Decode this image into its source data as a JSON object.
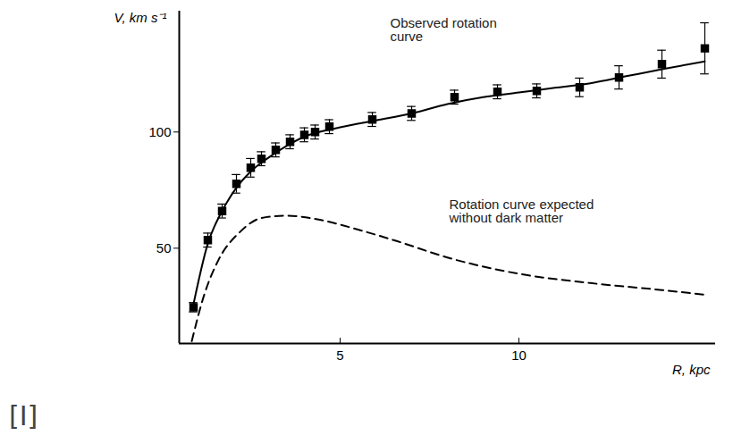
{
  "chart_data": {
    "type": "line",
    "x_label": "R, kpc",
    "y_label": "V, km s⁻¹",
    "panel_label": "[I]",
    "xlim": [
      0.5,
      15.5
    ],
    "ylim": [
      9,
      152
    ],
    "xticks": [
      5,
      10
    ],
    "yticks": [
      50,
      100
    ],
    "grid": false,
    "series": [
      {
        "type": "scatter",
        "marker": "square",
        "color": "#000000",
        "x": [
          0.9,
          1.3,
          1.7,
          2.1,
          2.5,
          2.8,
          3.2,
          3.6,
          4.0,
          4.3,
          4.7,
          5.9,
          7.0,
          8.2,
          9.4,
          10.5,
          11.7,
          12.8,
          14.0,
          15.2
        ],
        "values": [
          24.6,
          53.5,
          66,
          77.7,
          84.6,
          88.5,
          92.3,
          95.8,
          98.8,
          100,
          102.3,
          105.4,
          108,
          115,
          117.3,
          117.7,
          119.2,
          123.5,
          129.2,
          136
        ],
        "errors": [
          2,
          3,
          3,
          4,
          4,
          3,
          3,
          3,
          3,
          3,
          3,
          3,
          3,
          3,
          3,
          3,
          4,
          5,
          6,
          11
        ]
      },
      {
        "type": "line",
        "line_style": "solid",
        "color": "#000000",
        "x": [
          0.9,
          1.3,
          1.7,
          2.1,
          2.5,
          3.0,
          3.5,
          4.0,
          5.0,
          6.0,
          7.0,
          8.0,
          9.0,
          10.0,
          11.0,
          12.0,
          13.0,
          14.0,
          15.2
        ],
        "values": [
          26,
          52,
          66,
          76,
          83,
          89,
          94,
          98,
          102,
          105,
          108,
          112,
          115,
          117,
          119,
          121,
          124,
          127,
          130.4
        ]
      },
      {
        "type": "line",
        "line_style": "dashed",
        "color": "#000000",
        "x": [
          0.85,
          1.2,
          1.6,
          2.2,
          2.8,
          3.5,
          4.5,
          5.5,
          6.6,
          8.0,
          10.0,
          12.0,
          14.0,
          15.2
        ],
        "values": [
          10,
          30,
          45,
          57,
          63,
          64,
          62,
          58,
          53,
          46,
          39,
          35,
          32,
          30
        ]
      }
    ],
    "annotations": [
      {
        "text": "Observed rotation\ncurve",
        "x": 6.4,
        "y": 149
      },
      {
        "text": "Rotation curve expected\nwithout dark matter",
        "x": 8.05,
        "y": 71
      }
    ]
  }
}
